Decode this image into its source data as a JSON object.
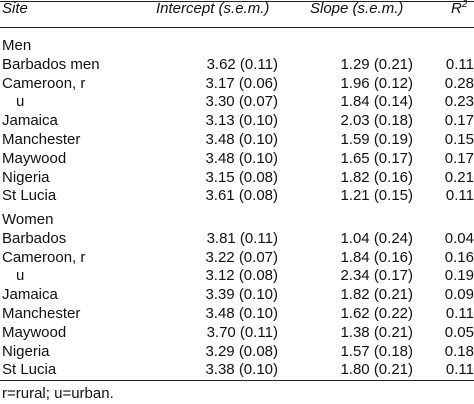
{
  "header": {
    "site": "Site",
    "intercept": "Intercept (s.e.m.)",
    "slope": "Slope (s.e.m.)",
    "r2": {
      "base": "R",
      "sup": "2"
    }
  },
  "sections": [
    {
      "label": "Men",
      "rows": [
        {
          "site": "Barbados men",
          "intercept": "3.62 (0.11)",
          "slope": "1.29 (0.21)",
          "r2": "0.11"
        },
        {
          "site": "Cameroon, r",
          "intercept": "3.17 (0.06)",
          "slope": "1.96 (0.12)",
          "r2": "0.28"
        },
        {
          "site": "u",
          "intercept": "3.30 (0.07)",
          "slope": "1.84 (0.14)",
          "r2": "0.23"
        },
        {
          "site": "Jamaica",
          "intercept": "3.13 (0.10)",
          "slope": "2.03 (0.18)",
          "r2": "0.17"
        },
        {
          "site": "Manchester",
          "intercept": "3.48 (0.10)",
          "slope": "1.59 (0.19)",
          "r2": "0.15"
        },
        {
          "site": "Maywood",
          "intercept": "3.48 (0.10)",
          "slope": "1.65 (0.17)",
          "r2": "0.17"
        },
        {
          "site": "Nigeria",
          "intercept": "3.15 (0.08)",
          "slope": "1.82 (0.16)",
          "r2": "0.21"
        },
        {
          "site": "St Lucia",
          "intercept": "3.61 (0.08)",
          "slope": "1.21 (0.15)",
          "r2": "0.11"
        }
      ]
    },
    {
      "label": "Women",
      "rows": [
        {
          "site": "Barbados",
          "intercept": "3.81 (0.11)",
          "slope": "1.04 (0.24)",
          "r2": "0.04"
        },
        {
          "site": "Cameroon, r",
          "intercept": "3.22 (0.07)",
          "slope": "1.84 (0.16)",
          "r2": "0.16"
        },
        {
          "site": "u",
          "intercept": "3.12 (0.08)",
          "slope": "2.34 (0.17)",
          "r2": "0.19"
        },
        {
          "site": "Jamaica",
          "intercept": "3.39 (0.10)",
          "slope": "1.82 (0.21)",
          "r2": "0.09"
        },
        {
          "site": "Manchester",
          "intercept": "3.48 (0.10)",
          "slope": "1.62 (0.22)",
          "r2": "0.11"
        },
        {
          "site": "Maywood",
          "intercept": "3.70 (0.11)",
          "slope": "1.38 (0.21)",
          "r2": "0.05"
        },
        {
          "site": "Nigeria",
          "intercept": "3.29 (0.08)",
          "slope": "1.57 (0.18)",
          "r2": "0.18"
        },
        {
          "site": "St Lucia",
          "intercept": "3.38 (0.10)",
          "slope": "1.80 (0.21)",
          "r2": "0.11"
        }
      ]
    }
  ],
  "footnote": "r=rural; u=urban."
}
